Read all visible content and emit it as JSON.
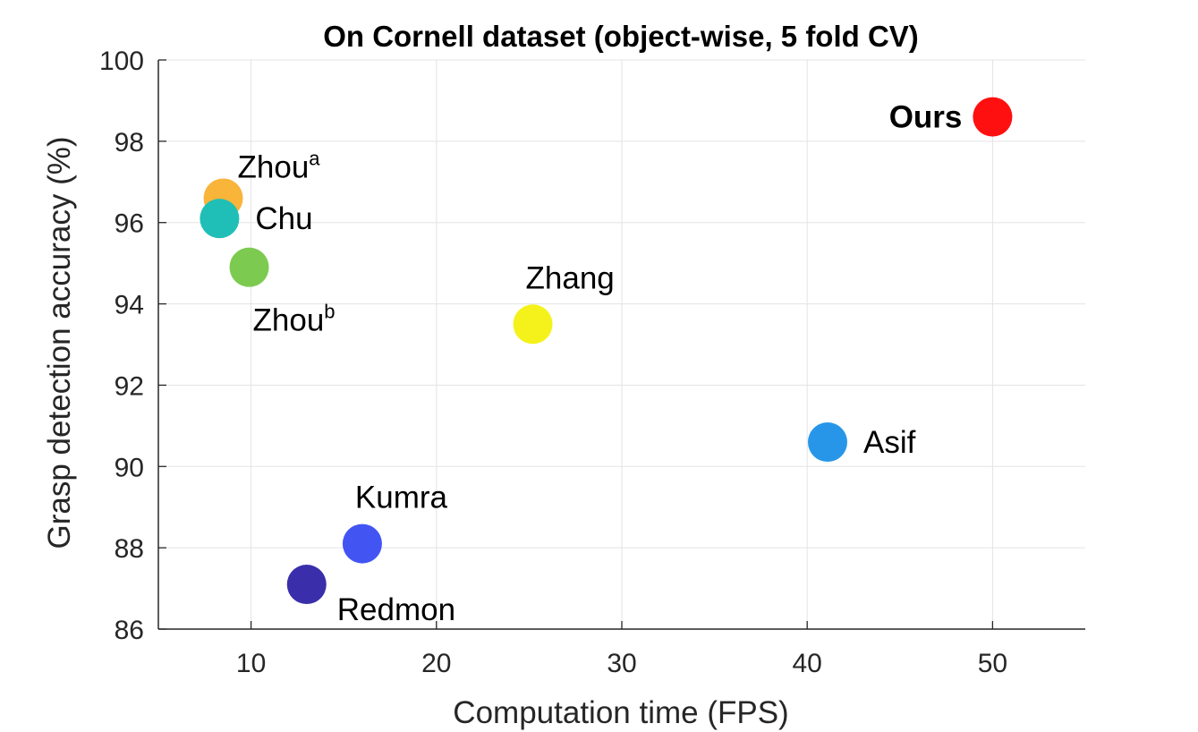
{
  "chart_data": {
    "type": "scatter",
    "title": "On Cornell dataset (object-wise, 5 fold CV)",
    "xlabel": "Computation time (FPS)",
    "ylabel": "Grasp detection accuracy (%)",
    "xlim": [
      5,
      55
    ],
    "ylim": [
      86,
      100
    ],
    "xticks": [
      10,
      20,
      30,
      40,
      50
    ],
    "yticks": [
      86,
      88,
      90,
      92,
      94,
      96,
      98,
      100
    ],
    "grid": true,
    "points": [
      {
        "label": "Zhou",
        "sup": "a",
        "x": 8.5,
        "y": 96.6,
        "color": "#F9B43A",
        "label_pos": "upper-right",
        "bold": false
      },
      {
        "label": "Chu",
        "sup": "",
        "x": 8.3,
        "y": 96.1,
        "color": "#1FBFB8",
        "label_pos": "right",
        "bold": false
      },
      {
        "label": "Zhou",
        "sup": "b",
        "x": 9.9,
        "y": 94.9,
        "color": "#7CCB50",
        "label_pos": "below",
        "bold": false
      },
      {
        "label": "Zhang",
        "sup": "",
        "x": 25.2,
        "y": 93.5,
        "color": "#F5F21B",
        "label_pos": "above",
        "bold": false
      },
      {
        "label": "Asif",
        "sup": "",
        "x": 41.1,
        "y": 90.6,
        "color": "#2896E8",
        "label_pos": "right",
        "bold": false
      },
      {
        "label": "Kumra",
        "sup": "",
        "x": 16.0,
        "y": 88.1,
        "color": "#4255F3",
        "label_pos": "above",
        "bold": false
      },
      {
        "label": "Redmon",
        "sup": "",
        "x": 13.0,
        "y": 87.1,
        "color": "#3A2EAA",
        "label_pos": "below-right",
        "bold": false
      },
      {
        "label": "Ours",
        "sup": "",
        "x": 50.0,
        "y": 98.6,
        "color": "#FF1010",
        "label_pos": "left",
        "bold": true
      }
    ]
  }
}
